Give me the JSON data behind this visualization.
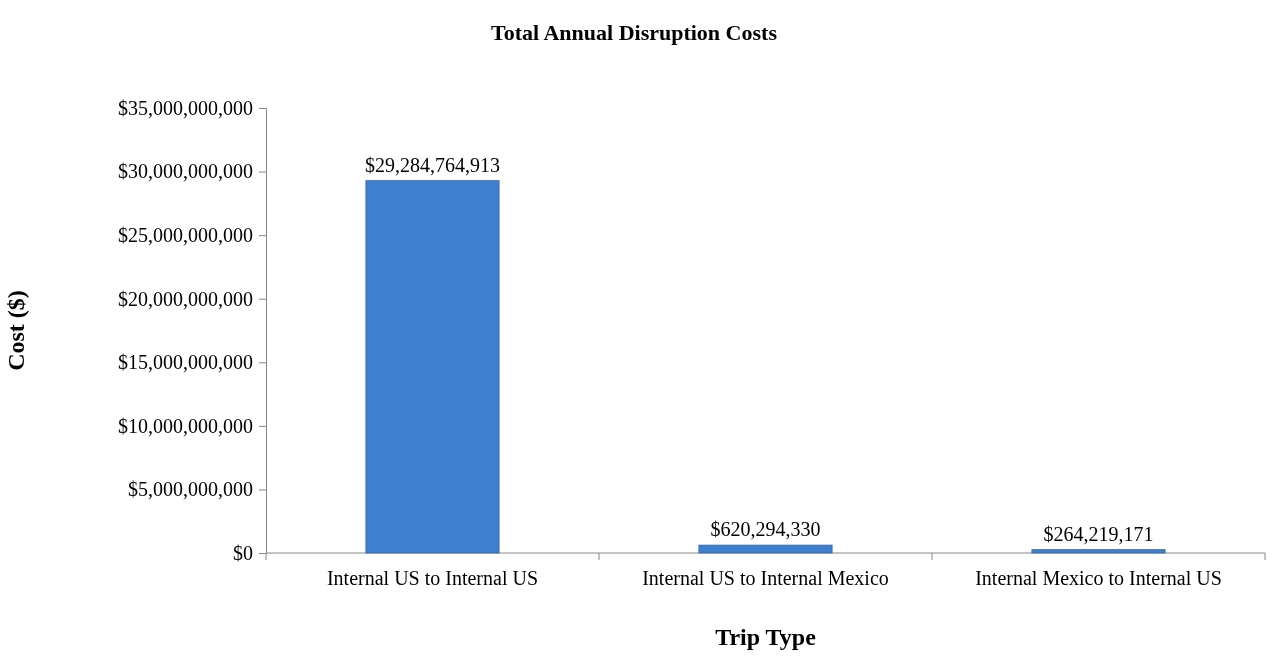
{
  "chart_data": {
    "type": "bar",
    "title": "Total Annual Disruption Costs",
    "xlabel": "Trip Type",
    "ylabel": "Cost ($)",
    "categories": [
      "Internal US to Internal US",
      "Internal US to Internal Mexico",
      "Internal Mexico to  Internal US"
    ],
    "values": [
      29284764913,
      620294330,
      264219171
    ],
    "color": "#3f7fcf",
    "data_labels": true,
    "value_labels": [
      "$29,284,764,913",
      "$620,294,330",
      "$264,219,171"
    ],
    "ylim": [
      0,
      35000000000
    ],
    "yticks": [
      {
        "value": 0,
        "label": "$0"
      },
      {
        "value": 5000000000,
        "label": "$5,000,000,000"
      },
      {
        "value": 10000000000,
        "label": "$10,000,000,000"
      },
      {
        "value": 15000000000,
        "label": "$15,000,000,000"
      },
      {
        "value": 20000000000,
        "label": "$20,000,000,000"
      },
      {
        "value": 25000000000,
        "label": "$25,000,000,000"
      },
      {
        "value": 30000000000,
        "label": "$30,000,000,000"
      },
      {
        "value": 35000000000,
        "label": "$35,000,000,000"
      }
    ],
    "grid": false
  }
}
